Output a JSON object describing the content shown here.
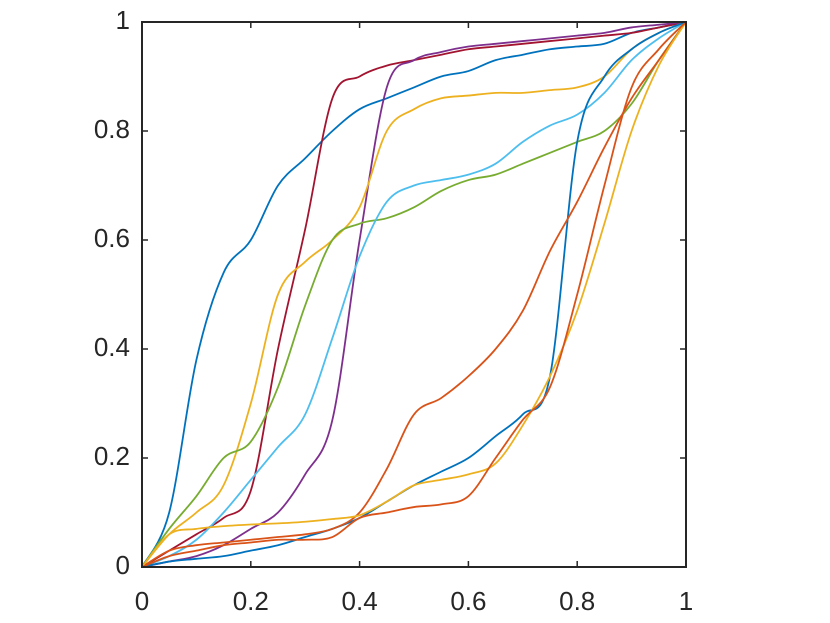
{
  "chart_data": {
    "type": "line",
    "x": [
      0,
      0.05,
      0.1,
      0.15,
      0.2,
      0.25,
      0.3,
      0.35,
      0.4,
      0.45,
      0.5,
      0.55,
      0.6,
      0.65,
      0.7,
      0.75,
      0.8,
      0.85,
      0.9,
      0.95,
      1
    ],
    "xlim": [
      0,
      1
    ],
    "ylim": [
      0,
      1
    ],
    "xticks": [
      0,
      0.2,
      0.4,
      0.6,
      0.8,
      1
    ],
    "yticks": [
      0,
      0.2,
      0.4,
      0.6,
      0.8,
      1
    ],
    "grid": false,
    "series": [
      {
        "color": "#0072BD",
        "values": [
          0,
          0.1,
          0.38,
          0.54,
          0.6,
          0.7,
          0.75,
          0.8,
          0.84,
          0.86,
          0.88,
          0.9,
          0.91,
          0.93,
          0.94,
          0.95,
          0.955,
          0.96,
          0.98,
          0.99,
          1
        ]
      },
      {
        "color": "#A2142F",
        "values": [
          0,
          0.03,
          0.06,
          0.09,
          0.14,
          0.4,
          0.62,
          0.86,
          0.9,
          0.92,
          0.93,
          0.94,
          0.95,
          0.955,
          0.96,
          0.965,
          0.97,
          0.975,
          0.98,
          0.99,
          1
        ]
      },
      {
        "color": "#7E2F8E",
        "values": [
          0,
          0.01,
          0.02,
          0.04,
          0.07,
          0.1,
          0.17,
          0.27,
          0.6,
          0.88,
          0.93,
          0.945,
          0.955,
          0.96,
          0.965,
          0.97,
          0.975,
          0.98,
          0.99,
          0.995,
          1
        ]
      },
      {
        "color": "#EDB120",
        "values": [
          0,
          0.06,
          0.1,
          0.15,
          0.3,
          0.5,
          0.56,
          0.6,
          0.66,
          0.8,
          0.84,
          0.86,
          0.865,
          0.87,
          0.87,
          0.875,
          0.88,
          0.9,
          0.95,
          0.98,
          1
        ]
      },
      {
        "color": "#77AC30",
        "values": [
          0,
          0.07,
          0.13,
          0.2,
          0.23,
          0.33,
          0.48,
          0.6,
          0.63,
          0.64,
          0.66,
          0.69,
          0.71,
          0.72,
          0.74,
          0.76,
          0.78,
          0.8,
          0.85,
          0.93,
          1
        ]
      },
      {
        "color": "#4DBEEE",
        "values": [
          0,
          0.02,
          0.05,
          0.1,
          0.16,
          0.22,
          0.28,
          0.42,
          0.57,
          0.67,
          0.7,
          0.71,
          0.72,
          0.74,
          0.78,
          0.81,
          0.83,
          0.87,
          0.93,
          0.97,
          1
        ]
      },
      {
        "color": "#0072BD",
        "values": [
          0,
          0.01,
          0.015,
          0.02,
          0.03,
          0.04,
          0.055,
          0.07,
          0.09,
          0.12,
          0.15,
          0.175,
          0.2,
          0.24,
          0.28,
          0.35,
          0.78,
          0.9,
          0.95,
          0.98,
          1
        ]
      },
      {
        "color": "#D95319",
        "values": [
          0,
          0.03,
          0.04,
          0.045,
          0.05,
          0.055,
          0.06,
          0.07,
          0.1,
          0.18,
          0.28,
          0.31,
          0.35,
          0.4,
          0.47,
          0.58,
          0.67,
          0.77,
          0.86,
          0.93,
          1
        ]
      },
      {
        "color": "#EDB120",
        "values": [
          0,
          0.06,
          0.07,
          0.075,
          0.078,
          0.08,
          0.083,
          0.088,
          0.095,
          0.12,
          0.15,
          0.16,
          0.17,
          0.19,
          0.26,
          0.35,
          0.47,
          0.63,
          0.8,
          0.92,
          1
        ]
      },
      {
        "color": "#D95319",
        "values": [
          0,
          0.02,
          0.03,
          0.04,
          0.045,
          0.05,
          0.05,
          0.055,
          0.09,
          0.1,
          0.11,
          0.115,
          0.13,
          0.2,
          0.27,
          0.33,
          0.5,
          0.7,
          0.88,
          0.95,
          1
        ]
      }
    ]
  }
}
